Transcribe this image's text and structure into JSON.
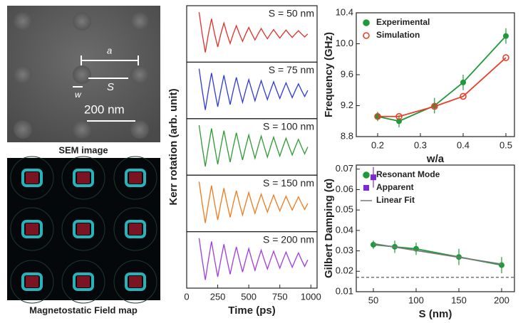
{
  "images": {
    "sem": {
      "caption": "SEM image",
      "labels": [
        "a",
        "S",
        "w",
        "200 nm"
      ]
    },
    "field_map": {
      "caption": "Magnetostatic Field map"
    }
  },
  "chart_data": [
    {
      "type": "line",
      "subplots": true,
      "xlabel": "Time (ps)",
      "ylabel": "Kerr rotation (arb. unit)",
      "xlim": [
        0,
        1050
      ],
      "xticks": [
        0,
        250,
        500,
        750,
        1000
      ],
      "ylim": [
        -1.3,
        1.3
      ],
      "x": [
        100,
        125,
        150,
        175,
        200,
        225,
        250,
        275,
        300,
        325,
        350,
        375,
        400,
        425,
        450,
        475,
        500,
        525,
        550,
        575,
        600,
        625,
        650,
        675,
        700,
        725,
        750,
        775,
        800,
        825,
        850,
        875,
        900,
        925,
        950,
        975
      ],
      "series": [
        {
          "name": "S = 50 nm",
          "color": "#e0302a",
          "values": [
            1,
            0,
            -0.85,
            0,
            0.7,
            0,
            -0.6,
            0,
            0.5,
            0,
            -0.44,
            0,
            0.38,
            0,
            -0.34,
            0,
            0.3,
            0,
            -0.28,
            0,
            0.25,
            0,
            -0.22,
            0,
            0.2,
            0,
            -0.19,
            0,
            0.18,
            0,
            -0.16,
            0,
            0.15,
            0,
            -0.14,
            0
          ]
        },
        {
          "name": "S = 75 nm",
          "color": "#2f3ad8",
          "values": [
            1,
            0,
            -0.9,
            0,
            0.8,
            0,
            -0.75,
            0,
            0.7,
            0,
            -0.65,
            0,
            0.6,
            0,
            -0.55,
            0,
            0.5,
            0,
            -0.48,
            0,
            0.45,
            0,
            -0.42,
            0,
            0.4,
            0,
            -0.37,
            0,
            0.35,
            0,
            -0.33,
            0,
            0.3,
            0,
            -0.28,
            0
          ]
        },
        {
          "name": "S = 100 nm",
          "color": "#2e9a36",
          "values": [
            1,
            0,
            -0.9,
            0,
            0.85,
            0,
            -0.8,
            0,
            0.75,
            0,
            -0.7,
            0,
            0.65,
            0,
            -0.6,
            0,
            0.55,
            0,
            -0.52,
            0,
            0.5,
            0,
            -0.47,
            0,
            0.45,
            0,
            -0.42,
            0,
            0.4,
            0,
            -0.37,
            0,
            0.35,
            0,
            -0.32,
            0
          ]
        },
        {
          "name": "S = 150 nm",
          "color": "#f07a1e",
          "values": [
            1,
            0,
            -0.9,
            0,
            0.82,
            0,
            -0.76,
            0,
            0.7,
            0,
            -0.64,
            0,
            0.58,
            0,
            -0.54,
            0,
            0.5,
            0,
            -0.46,
            0,
            0.43,
            0,
            -0.4,
            0,
            0.38,
            0,
            -0.35,
            0,
            0.33,
            0,
            -0.31,
            0,
            0.3,
            0,
            -0.28,
            0
          ]
        },
        {
          "name": "S = 200 nm",
          "color": "#a03ce0",
          "values": [
            1,
            0,
            -0.92,
            0,
            0.85,
            0,
            -0.78,
            0,
            0.72,
            0,
            -0.66,
            0,
            0.6,
            0,
            -0.56,
            0,
            0.52,
            0,
            -0.48,
            0,
            0.45,
            0,
            -0.42,
            0,
            0.4,
            0,
            -0.38,
            0,
            0.36,
            0,
            -0.34,
            0,
            0.32,
            0,
            -0.3,
            0
          ]
        }
      ]
    },
    {
      "type": "line",
      "xlabel": "w/a",
      "ylabel": "Frequency (GHz)",
      "xlim": [
        0.15,
        0.52
      ],
      "xticks": [
        0.2,
        0.3,
        0.4,
        0.5
      ],
      "ylim": [
        8.8,
        10.4
      ],
      "yticks": [
        8.8,
        9.2,
        9.6,
        {
          "value": 10,
          "label": "10.0"
        },
        10.4
      ],
      "x": [
        0.2,
        0.25,
        0.333,
        0.4,
        0.5
      ],
      "series": [
        {
          "name": "Experimental",
          "color": "#1f9a3a",
          "marker": "circle",
          "values": [
            9.06,
            9.0,
            9.2,
            9.5,
            10.1
          ],
          "errors": [
            0.06,
            0.08,
            0.1,
            0.1,
            0.1
          ]
        },
        {
          "name": "Simulation",
          "color": "#e8402a",
          "marker": "ring",
          "values": [
            9.06,
            9.06,
            9.19,
            9.32,
            9.82
          ]
        }
      ]
    },
    {
      "type": "line",
      "xlabel": "S (nm)",
      "ylabel": "Gilbert Damping (α)",
      "xlim": [
        30,
        215
      ],
      "xticks": [
        50,
        100,
        150,
        200
      ],
      "ylim": [
        0.01,
        0.072
      ],
      "yticks": [
        0.01,
        0.02,
        0.03,
        0.04,
        0.05,
        0.06,
        0.07
      ],
      "hline": 0.017,
      "series": [
        {
          "name": "Resonant Mode",
          "color": "#1f9a3a",
          "marker": "circle",
          "x": [
            50,
            75,
            100,
            150,
            200
          ],
          "values": [
            0.033,
            0.032,
            0.031,
            0.027,
            0.023
          ],
          "errors": [
            0.002,
            0.003,
            0.003,
            0.004,
            0.004
          ]
        },
        {
          "name": "Apparent",
          "color": "#7a2ad0",
          "marker": "square",
          "x": [
            50
          ],
          "values": [
            0.066
          ],
          "errors": [
            0.005
          ]
        },
        {
          "name": "Linear Fit",
          "color": "#777777",
          "marker": "none",
          "x": [
            50,
            200
          ],
          "values": [
            0.0335,
            0.0235
          ]
        }
      ]
    }
  ]
}
